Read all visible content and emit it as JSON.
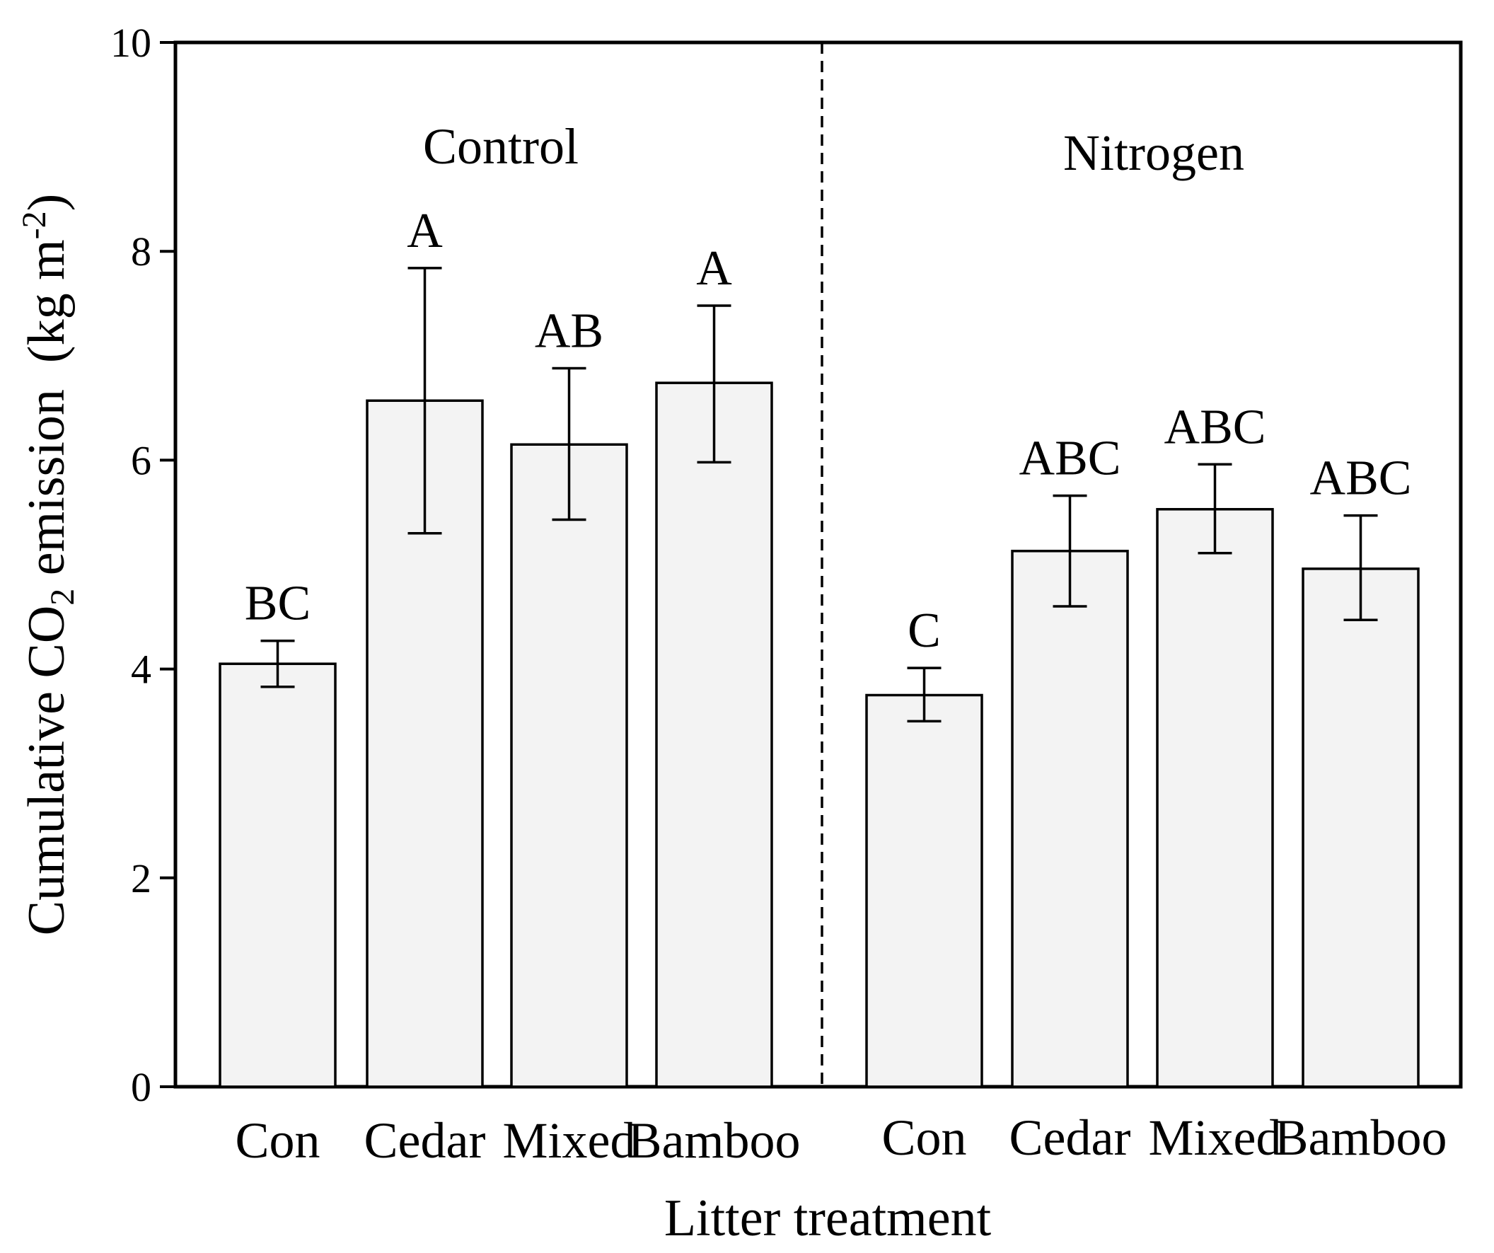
{
  "chart_data": {
    "type": "bar",
    "xlabel": "Litter treatment",
    "ylabel": {
      "pre": "Cumulative CO",
      "sub": "2",
      "mid": " emission  (kg m",
      "sup": "-2",
      "post": ")"
    },
    "ylim": [
      0,
      10
    ],
    "yticks": [
      0,
      2,
      4,
      6,
      8,
      10
    ],
    "groups": [
      {
        "name": "Control",
        "bars": [
          {
            "category": "Con",
            "value": 4.05,
            "err_low": 3.83,
            "err_high": 4.27,
            "letter": "BC"
          },
          {
            "category": "Cedar",
            "value": 6.57,
            "err_low": 5.3,
            "err_high": 7.84,
            "letter": "A"
          },
          {
            "category": "Mixed",
            "value": 6.15,
            "err_low": 5.43,
            "err_high": 6.88,
            "letter": "AB"
          },
          {
            "category": "Bamboo",
            "value": 6.74,
            "err_low": 5.98,
            "err_high": 7.48,
            "letter": "A"
          }
        ]
      },
      {
        "name": "Nitrogen",
        "bars": [
          {
            "category": "Con",
            "value": 3.75,
            "err_low": 3.5,
            "err_high": 4.01,
            "letter": "C"
          },
          {
            "category": "Cedar",
            "value": 5.13,
            "err_low": 4.6,
            "err_high": 5.66,
            "letter": "ABC"
          },
          {
            "category": "Mixed",
            "value": 5.53,
            "err_low": 5.11,
            "err_high": 5.96,
            "letter": "ABC"
          },
          {
            "category": "Bamboo",
            "value": 4.96,
            "err_low": 4.47,
            "err_high": 5.47,
            "letter": "ABC"
          }
        ]
      }
    ]
  }
}
